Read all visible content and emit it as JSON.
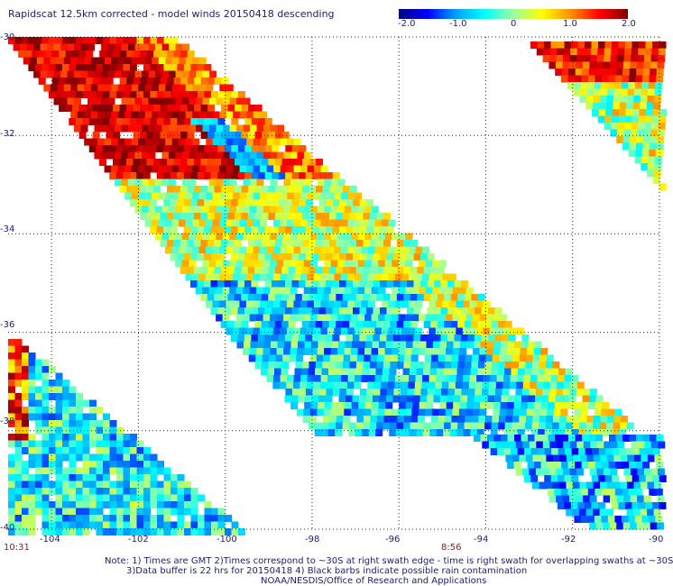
{
  "chart_data": {
    "type": "heatmap",
    "title": "Rapidscat 12.5km corrected - model winds 20150418 descending",
    "colorbar": {
      "min": -2.0,
      "max": 2.0,
      "tick_labels": [
        "-2.0",
        "-1.0",
        "0",
        "1.0",
        "2.0"
      ],
      "colors": [
        "#00007f",
        "#0000ff",
        "#00a0ff",
        "#00ffff",
        "#9cffa0",
        "#ffff00",
        "#ff9000",
        "#ff0000",
        "#7f0000"
      ]
    },
    "lon_range": [
      -105,
      -90
    ],
    "lat_range": [
      -40,
      -30
    ],
    "x_tick_labels": [
      "-104",
      "-102",
      "-100",
      "-98",
      "-96",
      "-94",
      "-92",
      "-90"
    ],
    "y_tick_labels": [
      "-30",
      "-32",
      "-34",
      "-36",
      "-38",
      "-40"
    ],
    "grid": true,
    "time_labels": [
      "10:31",
      "8:56"
    ],
    "footnotes": [
      "Note: 1) Times are GMT 2)Times correspond to ~30S at right swath edge - time is right swath for overlapping swaths at ~30S",
      "3)Data buffer is 22 hrs for 20150418 4) Black barbs indicate possible rain contamination",
      "NOAA/NESDIS/Office of Research and Applications"
    ]
  }
}
